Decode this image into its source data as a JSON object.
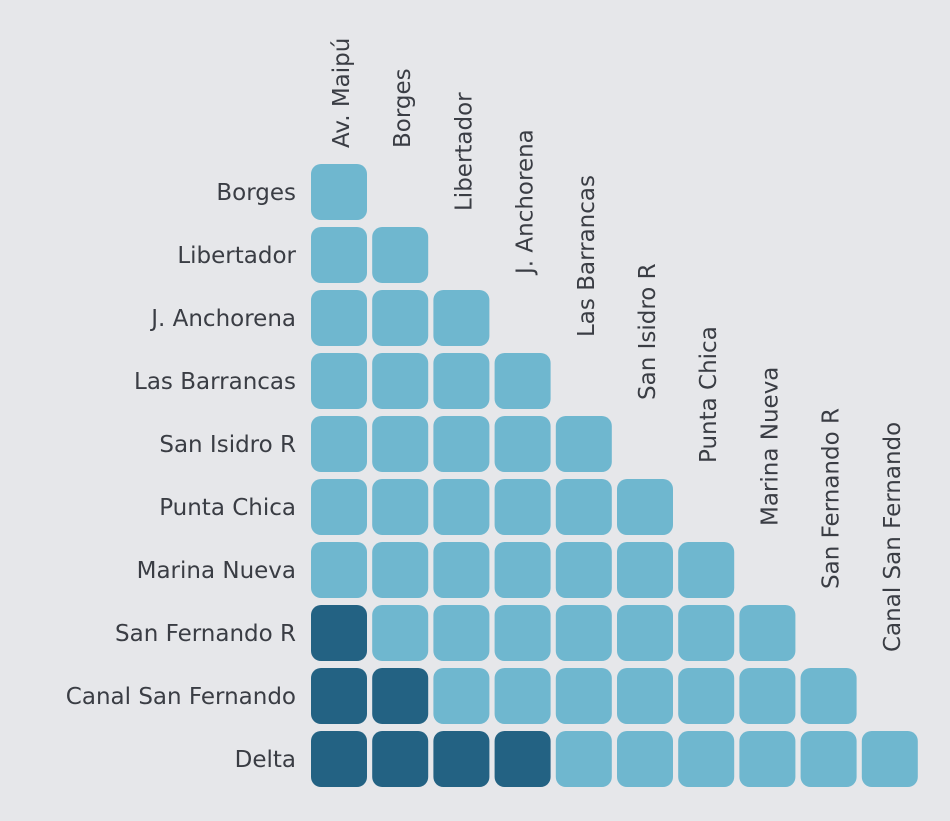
{
  "chart_data": {
    "type": "heatmap",
    "layout": "lower-triangular matrix",
    "columns": [
      "Av. Maipú",
      "Borges",
      "Libertador",
      "J. Anchorena",
      "Las Barrancas",
      "San Isidro R",
      "Punta Chica",
      "Marina Nueva",
      "San Fernando R",
      "Canal San Fernando"
    ],
    "rows": [
      "Borges",
      "Libertador",
      "J. Anchorena",
      "Las Barrancas",
      "San Isidro R",
      "Punta Chica",
      "Marina Nueva",
      "San Fernando R",
      "Canal San Fernando",
      "Delta"
    ],
    "values": [
      [
        0
      ],
      [
        0,
        0
      ],
      [
        0,
        0,
        0
      ],
      [
        0,
        0,
        0,
        0
      ],
      [
        0,
        0,
        0,
        0,
        0
      ],
      [
        0,
        0,
        0,
        0,
        0,
        0
      ],
      [
        0,
        0,
        0,
        0,
        0,
        0,
        0
      ],
      [
        1,
        0,
        0,
        0,
        0,
        0,
        0,
        0
      ],
      [
        1,
        1,
        0,
        0,
        0,
        0,
        0,
        0,
        0
      ],
      [
        1,
        1,
        1,
        1,
        0,
        0,
        0,
        0,
        0,
        0
      ]
    ],
    "colors": {
      "0": "#6fb7cf",
      "1": "#236283",
      "background": "#e6e7ea"
    },
    "grid": false
  }
}
